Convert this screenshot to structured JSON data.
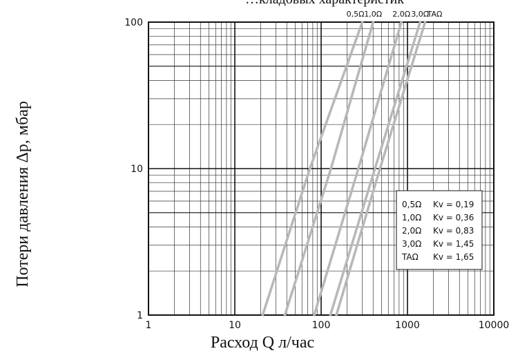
{
  "chart_data": {
    "type": "line",
    "title": "",
    "title_partial": "…кладовых характеристик",
    "xlabel": "Расход Q л/час",
    "ylabel": "Потери давления Δp, мбар",
    "x_scale": "log",
    "y_scale": "log",
    "xlim": [
      1,
      10000
    ],
    "ylim": [
      1,
      100
    ],
    "grid": true,
    "x_ticks": [
      "1",
      "10",
      "100",
      "1000",
      "10000"
    ],
    "y_ticks": [
      "1",
      "10",
      "100"
    ],
    "legend_position": "lower-right",
    "series": [
      {
        "name": "0,5Ω",
        "kv_label": "Kv = 0,19",
        "kv": 0.19,
        "color": "#b8b8b8",
        "points": [
          [
            21,
            1
          ],
          [
            74,
            10
          ],
          [
            300,
            100
          ]
        ]
      },
      {
        "name": "1,0Ω",
        "kv_label": "Kv = 0,36",
        "kv": 0.36,
        "color": "#b8b8b8",
        "points": [
          [
            38,
            1
          ],
          [
            130,
            10
          ],
          [
            400,
            100
          ]
        ]
      },
      {
        "name": "2,0Ω",
        "kv_label": "Kv = 0,83",
        "kv": 0.83,
        "color": "#b8b8b8",
        "points": [
          [
            83,
            1
          ],
          [
            270,
            10
          ],
          [
            850,
            100
          ]
        ]
      },
      {
        "name": "3,0Ω",
        "kv_label": "Kv = 1,45",
        "kv": 1.45,
        "color": "#b8b8b8",
        "points": [
          [
            128,
            1
          ],
          [
            420,
            10
          ],
          [
            1400,
            100
          ]
        ]
      },
      {
        "name": "TAΩ",
        "kv_label": "Kv = 1,65",
        "kv": 1.65,
        "color": "#b8b8b8",
        "points": [
          [
            150,
            1
          ],
          [
            480,
            10
          ],
          [
            1600,
            100
          ]
        ]
      }
    ]
  }
}
